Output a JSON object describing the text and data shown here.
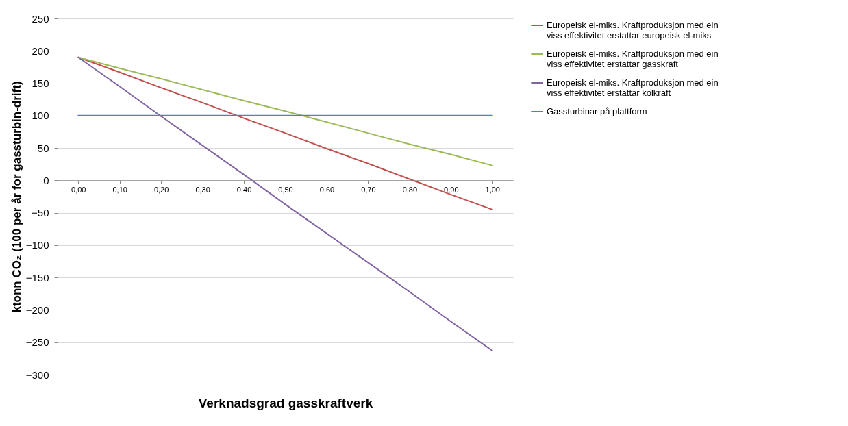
{
  "chart_data": {
    "type": "line",
    "xlabel": "Verknadsgrad gasskraftverk",
    "ylabel": "ktonn CO₂ (100 per år for gassturbin-drift)",
    "categories": [
      "0,00",
      "0,10",
      "0,20",
      "0,30",
      "0,40",
      "0,50",
      "0,60",
      "0,70",
      "0,80",
      "0,90",
      "1,00"
    ],
    "series": [
      {
        "name": "Europeisk el-miks. Kraftproduksjon med ein viss effektivitet erstattar europeisk el-miks",
        "color": "#c0504d",
        "values": [
          190,
          167,
          143,
          120,
          96,
          73,
          49,
          26,
          2,
          -22,
          -45
        ]
      },
      {
        "name": "Europeisk el-miks. Kraftproduksjon med ein viss effektivitet erstattar gasskraft",
        "color": "#9bbb59",
        "values": [
          190,
          173,
          157,
          140,
          123,
          107,
          90,
          73,
          56,
          40,
          23
        ]
      },
      {
        "name": "Europeisk el-miks. Kraftproduksjon med ein viss effektivitet erstattar kolkraft",
        "color": "#8064a2",
        "values": [
          190,
          145,
          99,
          54,
          9,
          -37,
          -82,
          -127,
          -172,
          -218,
          -263
        ]
      },
      {
        "name": "Gassturbinar på plattform",
        "color": "#4f81bd",
        "values": [
          100,
          100,
          100,
          100,
          100,
          100,
          100,
          100,
          100,
          100,
          100
        ]
      }
    ],
    "ylim": [
      -300,
      250
    ],
    "yticks": [
      -300,
      -250,
      -200,
      -150,
      -100,
      -50,
      0,
      50,
      100,
      150,
      200,
      250
    ],
    "grid": "y",
    "legend": "right",
    "marker": "none",
    "line_style": "solid"
  }
}
